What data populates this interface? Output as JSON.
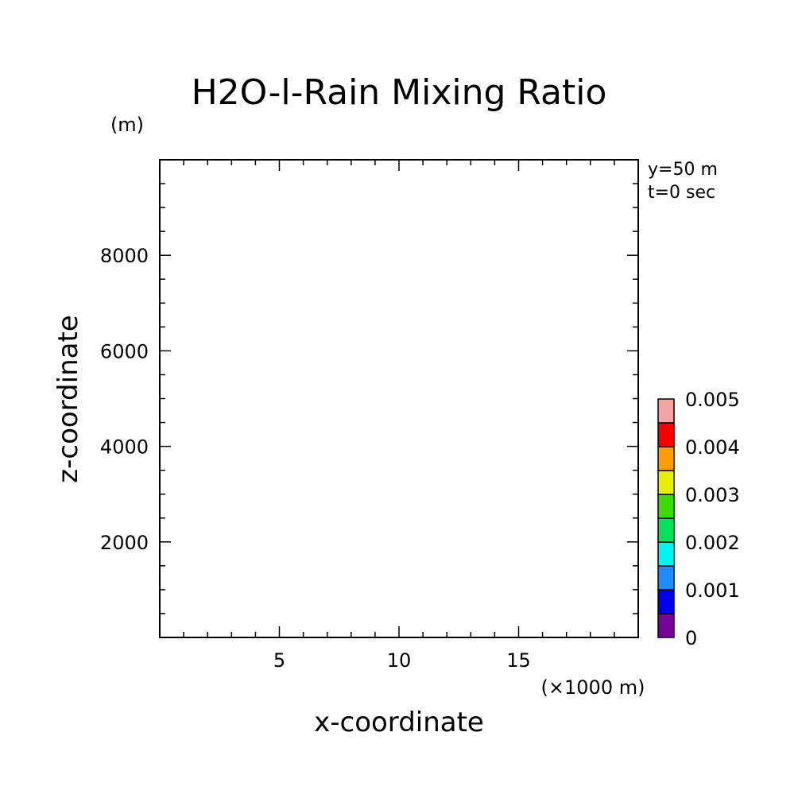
{
  "chart_data": {
    "type": "heatmap",
    "title": "H2O-l-Rain Mixing Ratio",
    "xlabel": "x-coordinate",
    "ylabel": "z-coordinate",
    "x_unit": "(×1000 m)",
    "y_unit": "(m)",
    "xlim": [
      0,
      20
    ],
    "ylim": [
      0,
      10000
    ],
    "x_ticks": [
      5,
      10,
      15
    ],
    "y_ticks": [
      2000,
      4000,
      6000,
      8000
    ],
    "annotations": [
      "y=50 m",
      "t=0 sec"
    ],
    "colorbar": {
      "ticks": [
        "0",
        "0.001",
        "0.002",
        "0.003",
        "0.004",
        "0.005"
      ],
      "levels": [
        0,
        0.0005,
        0.001,
        0.0015,
        0.002,
        0.0025,
        0.003,
        0.0035,
        0.004,
        0.0045,
        0.005
      ],
      "colors": [
        "#7a009a",
        "#0000ee",
        "#1e8cff",
        "#00f5f5",
        "#00e35a",
        "#3cdc00",
        "#e6f000",
        "#ff9c00",
        "#f50000",
        "#f5a3a3"
      ]
    },
    "values": [],
    "grid": false
  }
}
